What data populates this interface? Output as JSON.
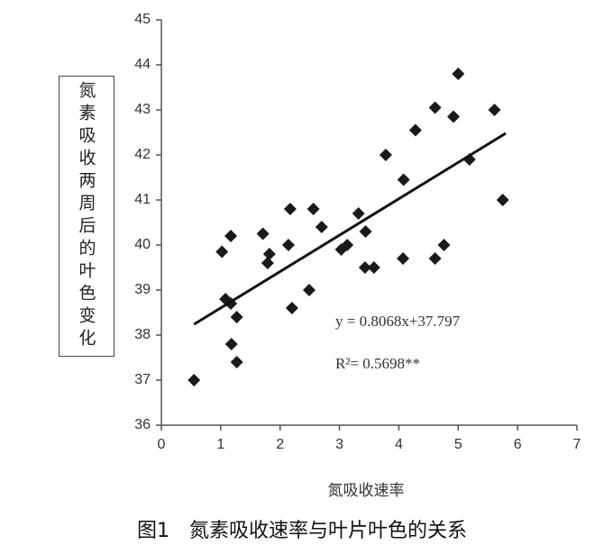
{
  "chart_data": {
    "type": "scatter",
    "x_label": "氮吸收速率",
    "y_label": "氮素吸收两周后的叶色变化",
    "caption": "图1　氮素吸收速率与叶片叶色的关系",
    "annotations": [
      "y =  0.8068x+37.797",
      "R²= 0.5698**"
    ],
    "x": [
      0.55,
      1.02,
      1.08,
      1.17,
      1.17,
      1.18,
      1.27,
      1.27,
      1.71,
      1.79,
      1.82,
      2.14,
      2.17,
      2.2,
      2.49,
      2.56,
      2.7,
      3.03,
      3.13,
      3.32,
      3.43,
      3.44,
      3.58,
      3.78,
      4.07,
      4.08,
      4.28,
      4.61,
      4.61,
      4.76,
      4.92,
      5.0,
      5.19,
      5.61,
      5.75
    ],
    "values": [
      37.0,
      39.85,
      38.8,
      40.2,
      38.7,
      37.8,
      38.4,
      37.4,
      40.25,
      39.6,
      39.8,
      40.0,
      40.8,
      38.6,
      39.0,
      40.8,
      40.4,
      39.9,
      40.0,
      40.7,
      39.5,
      40.3,
      39.5,
      42.0,
      39.7,
      41.45,
      42.55,
      43.05,
      39.7,
      40.0,
      42.85,
      43.8,
      41.9,
      43.0,
      41.0
    ],
    "color": "#1a1a1a",
    "trendline": {
      "x": [
        0.55,
        5.8
      ],
      "y": [
        38.24,
        42.48
      ]
    },
    "xlim": [
      0,
      7
    ],
    "xticks": [
      0,
      1,
      2,
      3,
      4,
      5,
      6,
      7
    ],
    "ylim": [
      36,
      45
    ],
    "yticks": [
      36,
      37,
      38,
      39,
      40,
      41,
      42,
      43,
      44,
      45
    ]
  }
}
